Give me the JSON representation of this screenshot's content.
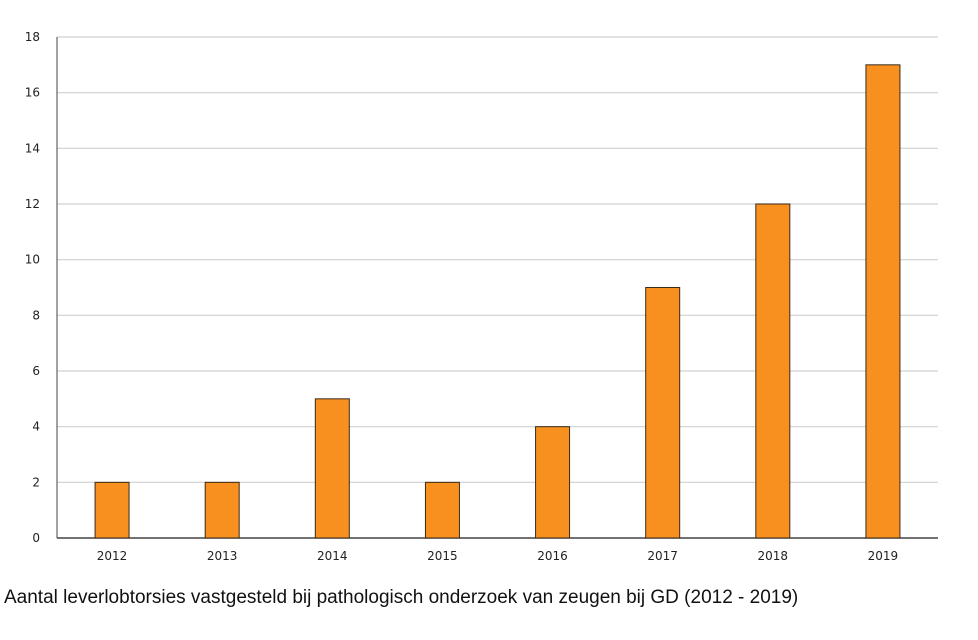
{
  "chart_data": {
    "type": "bar",
    "categories": [
      "2012",
      "2013",
      "2014",
      "2015",
      "2016",
      "2017",
      "2018",
      "2019"
    ],
    "values": [
      2,
      2,
      5,
      2,
      4,
      9,
      12,
      17
    ],
    "ylim": [
      0,
      18
    ],
    "yticks": [
      0,
      2,
      4,
      6,
      8,
      10,
      12,
      14,
      16,
      18
    ],
    "grid": true,
    "bar_color": "#f7901e",
    "bar_border_color": "#3a2a1a",
    "grid_color": "#d0d0d0"
  },
  "caption": "Aantal leverlobtorsies vastgesteld bij pathologisch onderzoek van zeugen bij GD (2012 - 2019)"
}
